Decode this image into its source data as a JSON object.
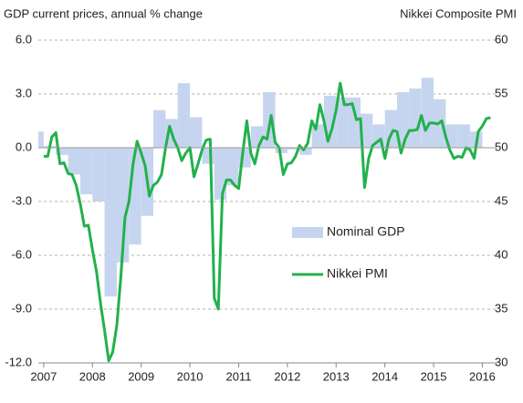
{
  "chart_data": {
    "type": "combo",
    "ylabel": "GDP current prices, annual % change",
    "y2label": "Nikkei Composite PMI",
    "xlim": [
      2006.89,
      2016.31
    ],
    "xticks": [
      2007,
      2008,
      2009,
      2010,
      2011,
      2012,
      2013,
      2014,
      2015,
      2016
    ],
    "ylim": [
      -12,
      6
    ],
    "yticks": [
      {
        "value": -12,
        "label": "-12.0"
      },
      {
        "value": -9,
        "label": "-9.0"
      },
      {
        "value": -6,
        "label": "-6.0"
      },
      {
        "value": -3,
        "label": "-3.0"
      },
      {
        "value": 0,
        "label": "0.0"
      },
      {
        "value": 3,
        "label": "3.0"
      },
      {
        "value": 6,
        "label": "6.0"
      }
    ],
    "y2lim": [
      30,
      60
    ],
    "y2ticks": [
      30,
      35,
      40,
      45,
      50,
      55,
      60
    ],
    "grid": true,
    "legend": "center right",
    "series": [
      {
        "name": "Nominal GDP",
        "type": "bar",
        "color": "#c6d5ef",
        "axis": "y",
        "x": [
          2006.75,
          2007,
          2007.25,
          2007.5,
          2007.75,
          2008,
          2008.25,
          2008.5,
          2008.75,
          2009,
          2009.25,
          2009.5,
          2009.75,
          2010,
          2010.25,
          2010.5,
          2010.75,
          2011,
          2011.25,
          2011.5,
          2011.75,
          2012,
          2012.25,
          2012.5,
          2012.75,
          2013,
          2013.25,
          2013.5,
          2013.75,
          2014,
          2014.25,
          2014.5,
          2014.75,
          2015,
          2015.25,
          2015.5,
          2015.75
        ],
        "values": [
          0.9,
          0.1,
          -0.4,
          -1.5,
          -2.6,
          -3.0,
          -8.3,
          -6.4,
          -5.4,
          -3.8,
          2.1,
          1.6,
          3.6,
          1.7,
          -0.9,
          -2.9,
          -2.1,
          -1.1,
          1.2,
          3.1,
          -0.3,
          -0.1,
          -0.4,
          1.3,
          2.9,
          2.8,
          2.8,
          1.9,
          1.3,
          2.1,
          3.1,
          3.3,
          3.9,
          2.7,
          1.3,
          1.3,
          0.9
        ]
      },
      {
        "name": "Nikkei PMI",
        "type": "line",
        "color": "#22b14c",
        "axis": "y2",
        "x": [
          2007,
          2007.083,
          2007.167,
          2007.25,
          2007.333,
          2007.417,
          2007.5,
          2007.583,
          2007.667,
          2007.75,
          2007.833,
          2007.917,
          2008,
          2008.083,
          2008.167,
          2008.25,
          2008.333,
          2008.417,
          2008.5,
          2008.583,
          2008.667,
          2008.75,
          2008.833,
          2008.917,
          2009,
          2009.083,
          2009.167,
          2009.25,
          2009.333,
          2009.417,
          2009.5,
          2009.583,
          2009.667,
          2009.75,
          2009.833,
          2009.917,
          2010,
          2010.083,
          2010.167,
          2010.25,
          2010.333,
          2010.417,
          2010.5,
          2010.583,
          2010.667,
          2010.75,
          2010.833,
          2010.917,
          2011,
          2011.083,
          2011.167,
          2011.25,
          2011.333,
          2011.417,
          2011.5,
          2011.583,
          2011.667,
          2011.75,
          2011.833,
          2011.917,
          2012,
          2012.083,
          2012.167,
          2012.25,
          2012.333,
          2012.417,
          2012.5,
          2012.583,
          2012.667,
          2012.75,
          2012.833,
          2012.917,
          2013,
          2013.083,
          2013.167,
          2013.25,
          2013.333,
          2013.417,
          2013.5,
          2013.583,
          2013.667,
          2013.75,
          2013.833,
          2013.917,
          2014,
          2014.083,
          2014.167,
          2014.25,
          2014.333,
          2014.417,
          2014.5,
          2014.583,
          2014.667,
          2014.75,
          2014.833,
          2014.917,
          2015,
          2015.083,
          2015.167,
          2015.25,
          2015.333,
          2015.417,
          2015.5,
          2015.583,
          2015.667,
          2015.75,
          2015.833,
          2015.917,
          2016,
          2016.083,
          2016.167
        ],
        "values": [
          49.2,
          49.2,
          51.0,
          51.4,
          48.5,
          48.6,
          47.6,
          47.5,
          46.5,
          44.8,
          42.7,
          42.8,
          40.5,
          38.5,
          35.5,
          33.0,
          30.2,
          31.0,
          33.5,
          38.0,
          43.5,
          45.0,
          48.5,
          50.6,
          49.5,
          48.3,
          45.5,
          46.5,
          46.8,
          47.5,
          50.0,
          52.0,
          50.8,
          50.0,
          48.8,
          49.5,
          50.0,
          47.3,
          48.5,
          49.8,
          50.7,
          50.8,
          36.0,
          35.0,
          45.7,
          47.0,
          47.0,
          46.5,
          46.2,
          49.5,
          52.5,
          49.5,
          48.5,
          50.2,
          51.0,
          50.8,
          53.0,
          50.5,
          50.0,
          47.5,
          48.5,
          48.6,
          49.2,
          50.2,
          49.8,
          50.4,
          52.5,
          51.7,
          54.0,
          52.5,
          50.6,
          51.8,
          53.5,
          56.0,
          54.0,
          54.0,
          54.1,
          52.6,
          52.7,
          46.3,
          49.0,
          50.2,
          50.5,
          50.8,
          49.0,
          50.8,
          51.6,
          51.5,
          49.5,
          50.8,
          51.6,
          51.6,
          51.7,
          53.0,
          51.6,
          52.3,
          52.3,
          52.2,
          52.5,
          51.0,
          49.8,
          49.0,
          49.2,
          49.1,
          50.0,
          49.8,
          49.0,
          51.5,
          52.0,
          52.7,
          52.8
        ]
      }
    ]
  }
}
